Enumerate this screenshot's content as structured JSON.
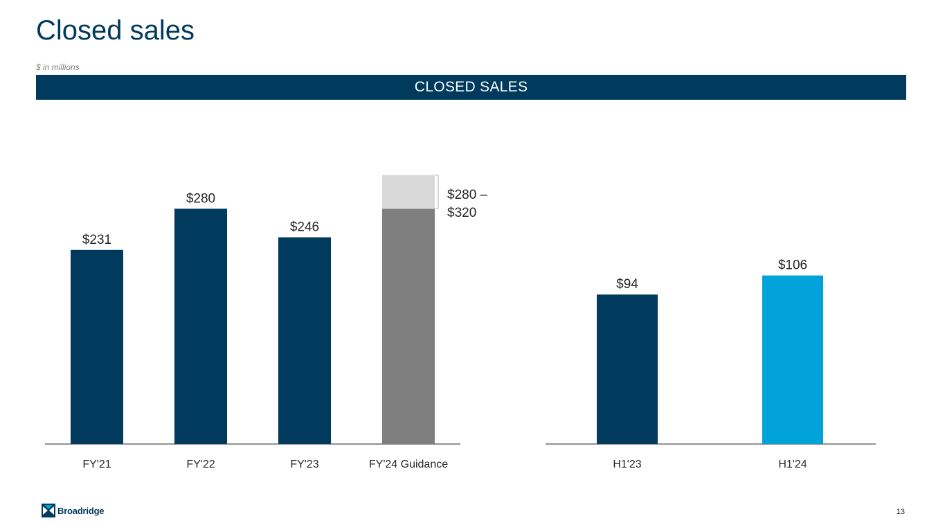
{
  "slide": {
    "title": "Closed sales",
    "subtitle": "$ in millions",
    "banner": "CLOSED SALES",
    "page_number": "13",
    "logo_text": "Broadridge"
  },
  "colors": {
    "navy": "#003a5d",
    "cyan": "#00a3d9",
    "guidance_low": "#7f7f7f",
    "guidance_range": "#d9d9d9",
    "axis": "#262626",
    "bracket": "#bfbfbf"
  },
  "chart_data": [
    {
      "type": "bar",
      "title": "CLOSED SALES",
      "unit": "$ in millions",
      "categories": [
        "FY'21",
        "FY'22",
        "FY'23",
        "FY'24 Guidance"
      ],
      "values": [
        231,
        280,
        246,
        280
      ],
      "labels": [
        "$231",
        "$280",
        "$246",
        ""
      ],
      "range": {
        "category": "FY'24 Guidance",
        "low": 280,
        "high": 320,
        "label_line1": "$280 –",
        "label_line2": "$320"
      },
      "ylim": [
        0,
        380
      ],
      "grid": false
    },
    {
      "type": "bar",
      "categories": [
        "H1'23",
        "H1'24"
      ],
      "values": [
        94,
        106
      ],
      "labels": [
        "$94",
        "$106"
      ],
      "ylim": [
        0,
        230
      ],
      "grid": false
    }
  ]
}
